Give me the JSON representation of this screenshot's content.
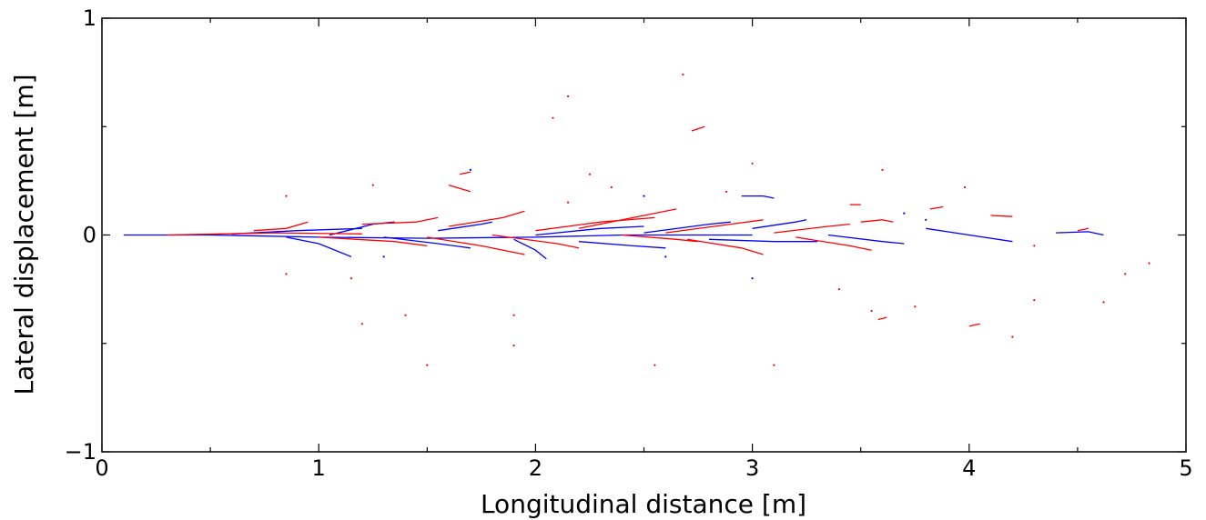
{
  "chart_data": {
    "type": "line",
    "title": "",
    "xlabel": "Longitudinal distance  [m]",
    "ylabel": "Lateral displacement  [m]",
    "xlim": [
      0,
      5
    ],
    "ylim": [
      -1,
      1
    ],
    "x_ticks": [
      0,
      1,
      2,
      3,
      4,
      5
    ],
    "x_tick_labels": [
      "0",
      "1",
      "2",
      "3",
      "4",
      "5"
    ],
    "x_minor_ticks": [
      0.5,
      1.5,
      2.5,
      3.5,
      4.5
    ],
    "y_ticks": [
      -1,
      0,
      1
    ],
    "y_tick_labels": [
      "−1",
      "0",
      "1"
    ],
    "y_minor_ticks": [
      -0.5,
      0.5
    ],
    "grid": false,
    "legend": "none",
    "colors": {
      "series_a": "#0000ff",
      "series_b": "#ff0000",
      "axes": "#000000"
    },
    "series": [
      {
        "color": "#0000ff",
        "segments": [
          [
            [
              0.1,
              0.0
            ],
            [
              0.5,
              0.0
            ],
            [
              1.0,
              -0.01
            ],
            [
              1.5,
              -0.015
            ],
            [
              2.0,
              -0.01
            ],
            [
              2.4,
              0.0
            ],
            [
              3.0,
              0.0
            ]
          ],
          [
            [
              0.6,
              0.005
            ],
            [
              0.9,
              0.02
            ],
            [
              1.2,
              0.03
            ]
          ],
          [
            [
              0.85,
              -0.01
            ],
            [
              1.0,
              -0.04
            ],
            [
              1.15,
              -0.1
            ]
          ],
          [
            [
              1.05,
              0.0
            ],
            [
              1.25,
              0.05
            ],
            [
              1.35,
              0.06
            ]
          ],
          [
            [
              1.3,
              -0.01
            ],
            [
              1.55,
              -0.04
            ],
            [
              1.7,
              -0.06
            ]
          ],
          [
            [
              1.55,
              0.02
            ],
            [
              1.75,
              0.05
            ],
            [
              1.8,
              0.06
            ]
          ],
          [
            [
              1.9,
              -0.02
            ],
            [
              2.0,
              -0.07
            ],
            [
              2.05,
              -0.11
            ]
          ],
          [
            [
              2.0,
              0.0
            ],
            [
              2.3,
              0.03
            ],
            [
              2.5,
              0.04
            ]
          ],
          [
            [
              2.2,
              -0.03
            ],
            [
              2.45,
              -0.05
            ],
            [
              2.6,
              -0.06
            ]
          ],
          [
            [
              2.5,
              0.01
            ],
            [
              2.8,
              0.05
            ],
            [
              2.9,
              0.06
            ]
          ],
          [
            [
              2.8,
              -0.02
            ],
            [
              3.1,
              -0.03
            ],
            [
              3.3,
              -0.03
            ]
          ],
          [
            [
              3.0,
              0.03
            ],
            [
              3.2,
              0.06
            ],
            [
              3.25,
              0.07
            ]
          ],
          [
            [
              3.35,
              0.0
            ],
            [
              3.6,
              -0.03
            ],
            [
              3.7,
              -0.04
            ]
          ],
          [
            [
              3.8,
              0.03
            ],
            [
              4.0,
              0.0
            ],
            [
              4.2,
              -0.03
            ]
          ],
          [
            [
              4.4,
              0.01
            ],
            [
              4.55,
              0.015
            ],
            [
              4.62,
              0.0
            ]
          ],
          [
            [
              2.95,
              0.18
            ],
            [
              3.05,
              0.18
            ],
            [
              3.1,
              0.17
            ]
          ]
        ]
      },
      {
        "color": "#ff0000",
        "segments": [
          [
            [
              0.3,
              0.0
            ],
            [
              0.8,
              0.01
            ],
            [
              1.2,
              0.005
            ]
          ],
          [
            [
              0.7,
              0.02
            ],
            [
              0.85,
              0.03
            ],
            [
              0.95,
              0.06
            ]
          ],
          [
            [
              1.0,
              -0.01
            ],
            [
              1.35,
              -0.03
            ],
            [
              1.5,
              -0.05
            ]
          ],
          [
            [
              1.2,
              0.05
            ],
            [
              1.45,
              0.06
            ],
            [
              1.55,
              0.08
            ]
          ],
          [
            [
              1.5,
              -0.01
            ],
            [
              1.75,
              -0.05
            ],
            [
              1.95,
              -0.09
            ]
          ],
          [
            [
              1.6,
              0.04
            ],
            [
              1.85,
              0.08
            ],
            [
              1.95,
              0.11
            ]
          ],
          [
            [
              1.8,
              0.0
            ],
            [
              2.1,
              -0.04
            ],
            [
              2.2,
              -0.06
            ]
          ],
          [
            [
              2.0,
              0.02
            ],
            [
              2.3,
              0.06
            ],
            [
              2.55,
              0.08
            ]
          ],
          [
            [
              2.2,
              0.03
            ],
            [
              2.5,
              0.09
            ],
            [
              2.65,
              0.12
            ]
          ],
          [
            [
              2.4,
              0.0
            ],
            [
              2.65,
              -0.02
            ],
            [
              2.75,
              -0.03
            ]
          ],
          [
            [
              2.6,
              0.01
            ],
            [
              2.9,
              0.05
            ],
            [
              3.05,
              0.07
            ]
          ],
          [
            [
              2.7,
              -0.02
            ],
            [
              2.95,
              -0.06
            ],
            [
              3.05,
              -0.09
            ]
          ],
          [
            [
              3.1,
              0.01
            ],
            [
              3.35,
              0.04
            ],
            [
              3.45,
              0.05
            ]
          ],
          [
            [
              3.2,
              -0.01
            ],
            [
              3.45,
              -0.05
            ],
            [
              3.55,
              -0.07
            ]
          ],
          [
            [
              3.5,
              0.06
            ],
            [
              3.6,
              0.07
            ],
            [
              3.65,
              0.06
            ]
          ],
          [
            [
              3.45,
              0.14
            ],
            [
              3.5,
              0.14
            ]
          ],
          [
            [
              2.72,
              0.48
            ],
            [
              2.78,
              0.5
            ]
          ],
          [
            [
              1.6,
              0.23
            ],
            [
              1.7,
              0.2
            ]
          ],
          [
            [
              1.65,
              0.28
            ],
            [
              1.7,
              0.29
            ]
          ],
          [
            [
              4.0,
              -0.42
            ],
            [
              4.05,
              -0.41
            ]
          ],
          [
            [
              3.58,
              -0.39
            ],
            [
              3.62,
              -0.38
            ]
          ],
          [
            [
              4.1,
              0.09
            ],
            [
              4.2,
              0.085
            ]
          ],
          [
            [
              4.5,
              0.02
            ],
            [
              4.55,
              0.03
            ]
          ],
          [
            [
              3.82,
              0.12
            ],
            [
              3.88,
              0.13
            ]
          ]
        ]
      }
    ],
    "points": [
      {
        "color": "#ff0000",
        "xy": [
          [
            2.15,
            0.64
          ],
          [
            2.68,
            0.74
          ],
          [
            2.08,
            0.54
          ],
          [
            3.0,
            0.33
          ],
          [
            2.25,
            0.28
          ],
          [
            1.25,
            0.23
          ],
          [
            0.85,
            0.18
          ],
          [
            1.2,
            -0.41
          ],
          [
            1.4,
            -0.37
          ],
          [
            1.5,
            -0.6
          ],
          [
            1.9,
            -0.51
          ],
          [
            1.9,
            -0.37
          ],
          [
            2.55,
            -0.6
          ],
          [
            3.1,
            -0.6
          ],
          [
            4.2,
            -0.47
          ],
          [
            4.62,
            -0.31
          ],
          [
            4.83,
            -0.13
          ],
          [
            4.3,
            -0.3
          ],
          [
            3.4,
            -0.25
          ],
          [
            3.55,
            -0.35
          ],
          [
            3.75,
            -0.33
          ],
          [
            1.15,
            -0.2
          ],
          [
            0.85,
            -0.18
          ],
          [
            2.15,
            0.15
          ],
          [
            2.35,
            0.22
          ],
          [
            2.88,
            0.2
          ],
          [
            3.6,
            0.3
          ],
          [
            3.98,
            0.22
          ],
          [
            4.3,
            -0.05
          ],
          [
            4.72,
            -0.18
          ]
        ]
      },
      {
        "color": "#0000ff",
        "xy": [
          [
            1.7,
            0.3
          ],
          [
            3.7,
            0.1
          ],
          [
            3.0,
            -0.2
          ],
          [
            2.5,
            0.18
          ],
          [
            1.3,
            -0.1
          ],
          [
            2.6,
            -0.1
          ],
          [
            3.8,
            0.07
          ]
        ]
      }
    ]
  }
}
